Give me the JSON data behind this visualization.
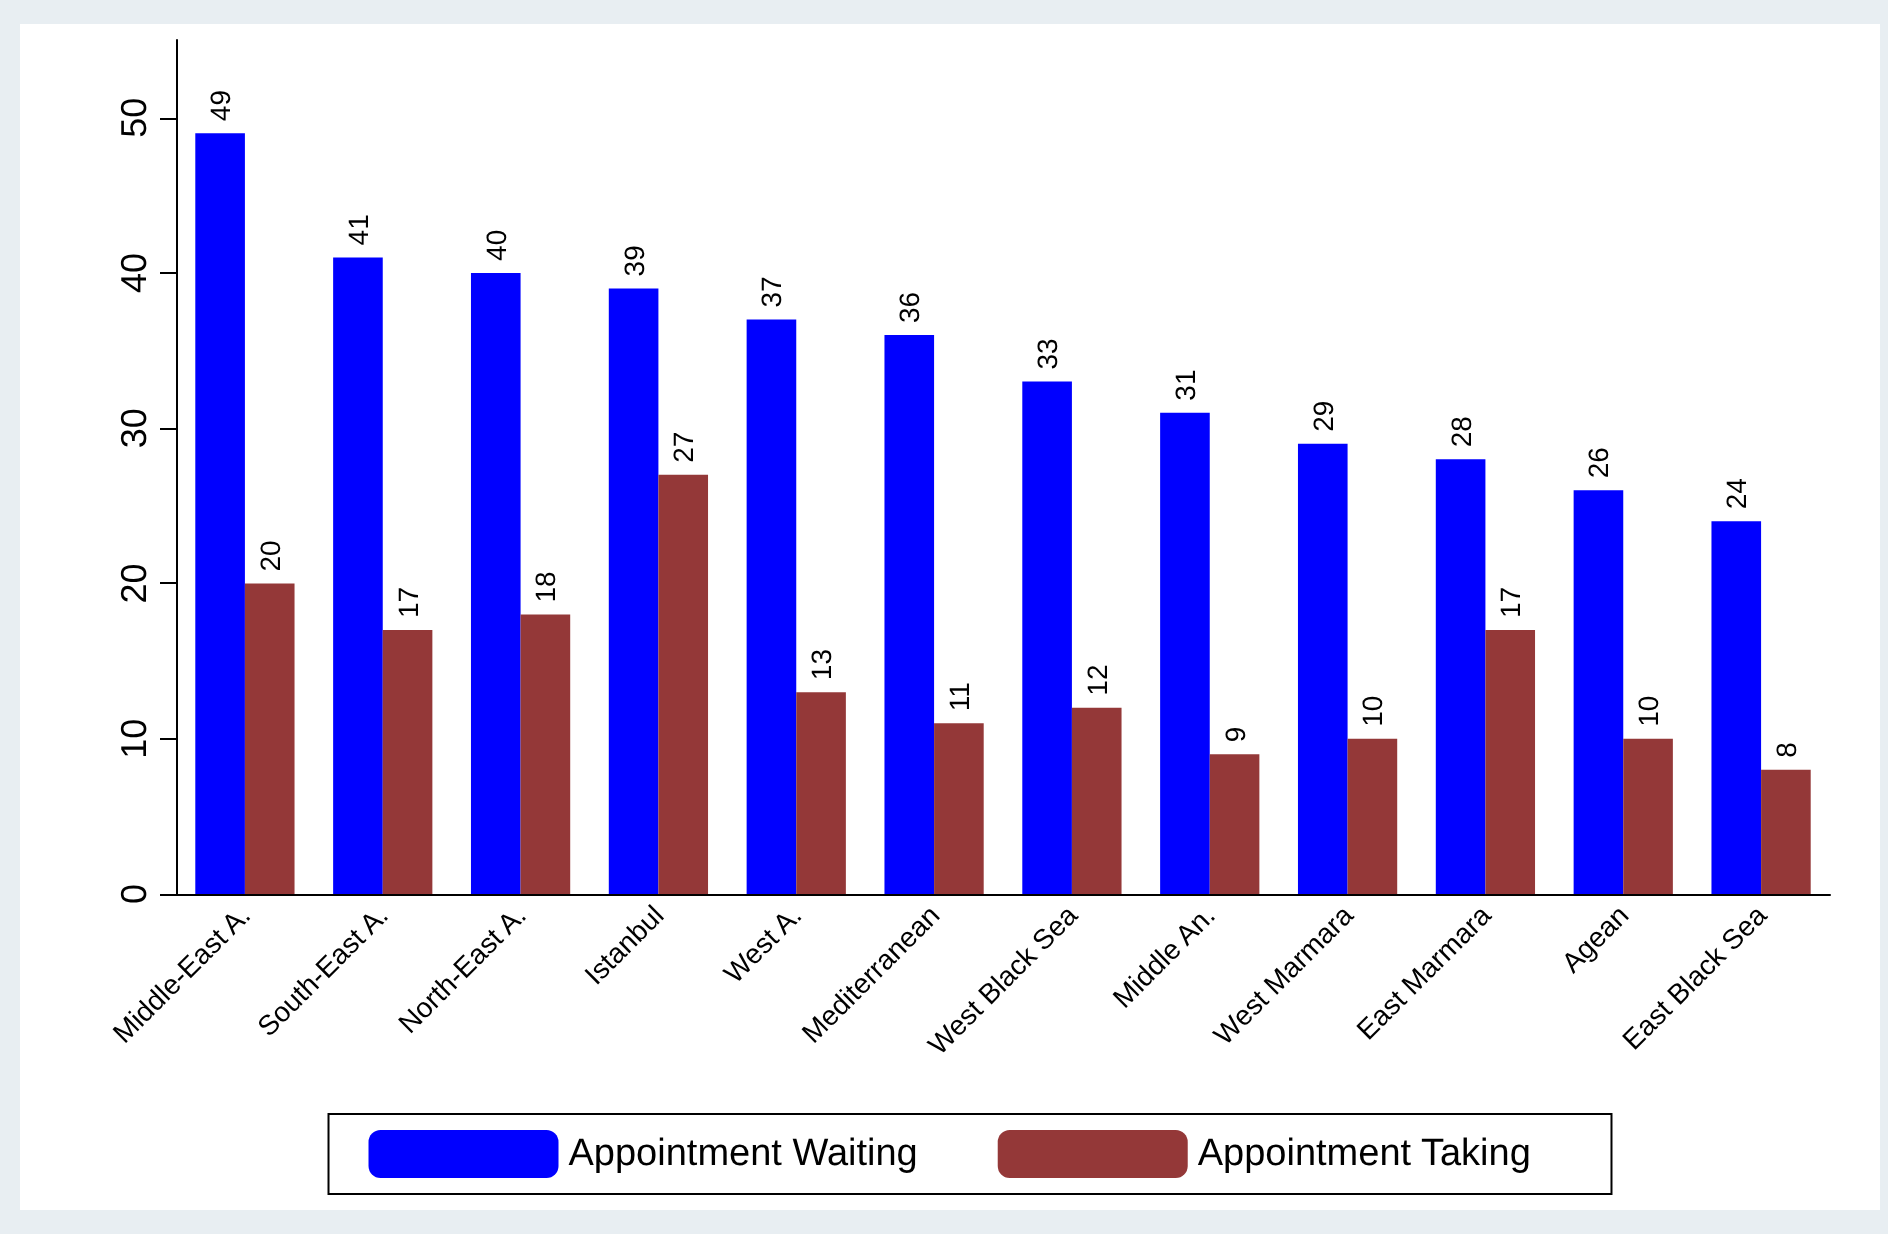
{
  "chart_data": {
    "type": "bar",
    "categories": [
      "Middle-East A.",
      "South-East A.",
      "North-East A.",
      "Istanbul",
      "West A.",
      "Mediterranean",
      "West Black Sea",
      "Middle An.",
      "West Marmara",
      "East Marmara",
      "Agean",
      "East Black Sea"
    ],
    "series": [
      {
        "name": "Appointment Waiting",
        "color": "#0000ff",
        "values": [
          49,
          41,
          40,
          39,
          37,
          36,
          33,
          31,
          29,
          28,
          26,
          24
        ]
      },
      {
        "name": "Appointment Taking",
        "color": "#943838",
        "values": [
          20,
          17,
          18,
          27,
          13,
          11,
          12,
          9,
          10,
          17,
          10,
          8
        ]
      }
    ],
    "ylim": [
      0,
      55
    ],
    "yticks": [
      0,
      10,
      20,
      30,
      40,
      50
    ],
    "data_labels": true,
    "legend": "bottom"
  }
}
